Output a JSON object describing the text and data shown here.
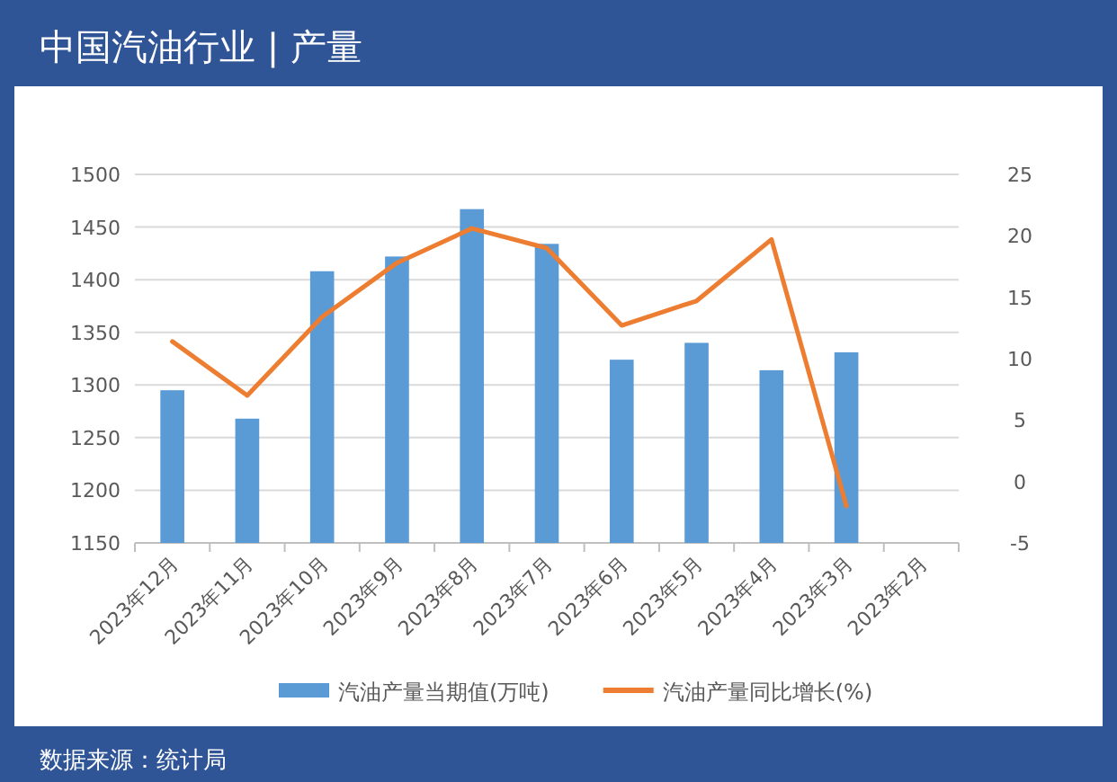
{
  "chart_data": {
    "type": "bar",
    "title": "中国汽油行业 | 产量",
    "categories": [
      "2023年12月",
      "2023年11月",
      "2023年10月",
      "2023年9月",
      "2023年8月",
      "2023年7月",
      "2023年6月",
      "2023年5月",
      "2023年4月",
      "2023年3月",
      "2023年2月"
    ],
    "series": [
      {
        "name": "汽油产量当期值(万吨)",
        "color": "#5b9bd5",
        "values": [
          1295,
          1268,
          1408,
          1422,
          1467,
          1434,
          1324,
          1340,
          1314,
          1331,
          null
        ]
      },
      {
        "name": "汽油产量同比增长(%)",
        "type": "line",
        "axis": "y2",
        "color": "#ed7d31",
        "values": [
          11.4,
          7.0,
          13.4,
          17.8,
          20.6,
          19.0,
          12.7,
          14.7,
          19.7,
          -2.0,
          null
        ]
      }
    ],
    "ylim": [
      1150,
      1500
    ],
    "yticks": [
      1150,
      1200,
      1250,
      1300,
      1350,
      1400,
      1450,
      1500
    ],
    "y2lim": [
      -5,
      25
    ],
    "y2ticks": [
      -5,
      0,
      5,
      10,
      15,
      20,
      25
    ],
    "grid": "y",
    "legend": "bottom",
    "marker": "none",
    "line_style": "solid",
    "annotations": [
      "数据来源：统计局"
    ]
  }
}
